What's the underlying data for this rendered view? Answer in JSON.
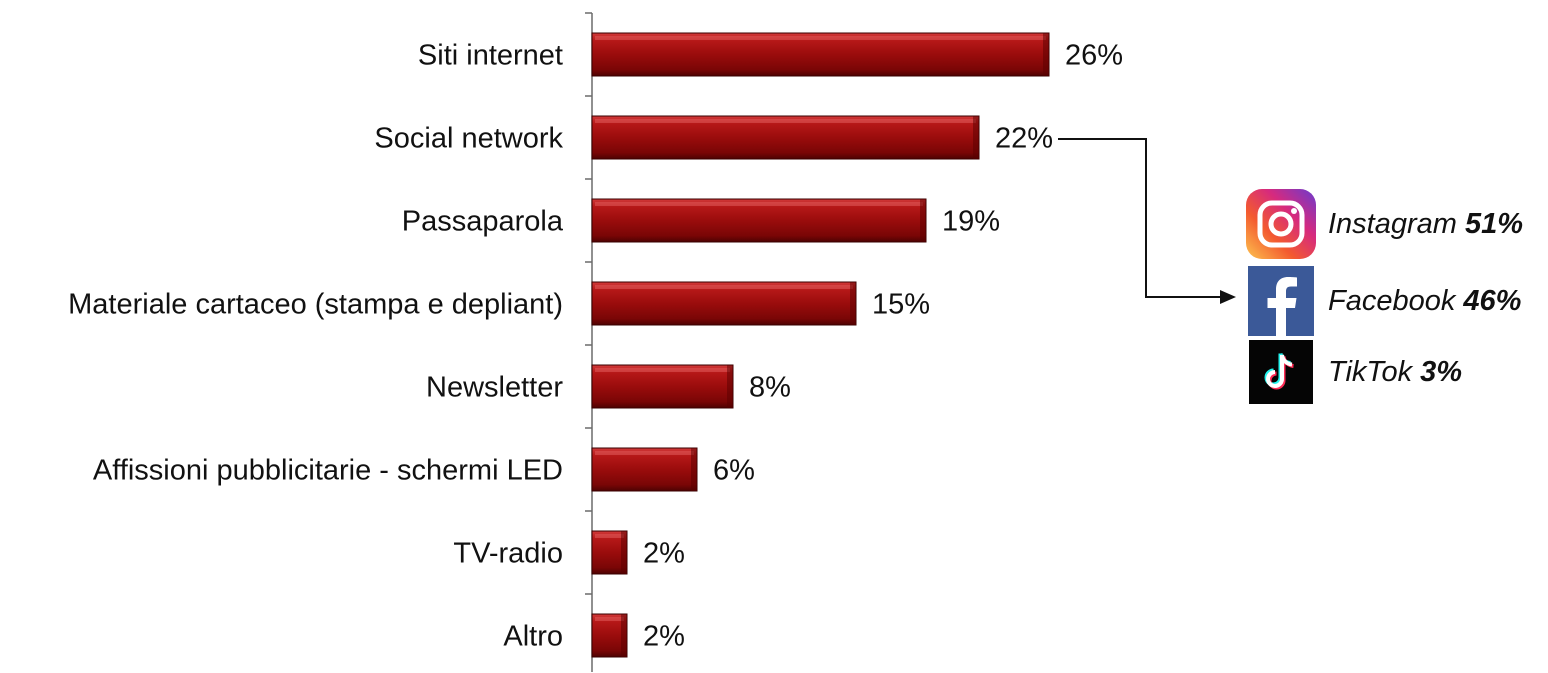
{
  "chart_data": {
    "type": "bar",
    "orientation": "horizontal",
    "categories": [
      "Siti internet",
      "Social network",
      "Passaparola",
      "Materiale cartaceo (stampa e depliant)",
      "Newsletter",
      "Affissioni pubblicitarie - schermi LED",
      "TV-radio",
      "Altro"
    ],
    "values": [
      26,
      22,
      19,
      15,
      8,
      6,
      2,
      2
    ],
    "value_labels": [
      "26%",
      "22%",
      "19%",
      "15%",
      "8%",
      "6%",
      "2%",
      "2%"
    ],
    "xlim": [
      0,
      26
    ],
    "bar_color": "#a10e0e",
    "title": "",
    "xlabel": "",
    "ylabel": "",
    "grid": false
  },
  "social_breakdown": {
    "source_category": "Social network",
    "items": [
      {
        "name": "Instagram",
        "value_label": "51%",
        "icon": "instagram-icon"
      },
      {
        "name": "Facebook",
        "value_label": "46%",
        "icon": "facebook-icon"
      },
      {
        "name": "TikTok",
        "value_label": "3%",
        "icon": "tiktok-icon"
      }
    ]
  }
}
